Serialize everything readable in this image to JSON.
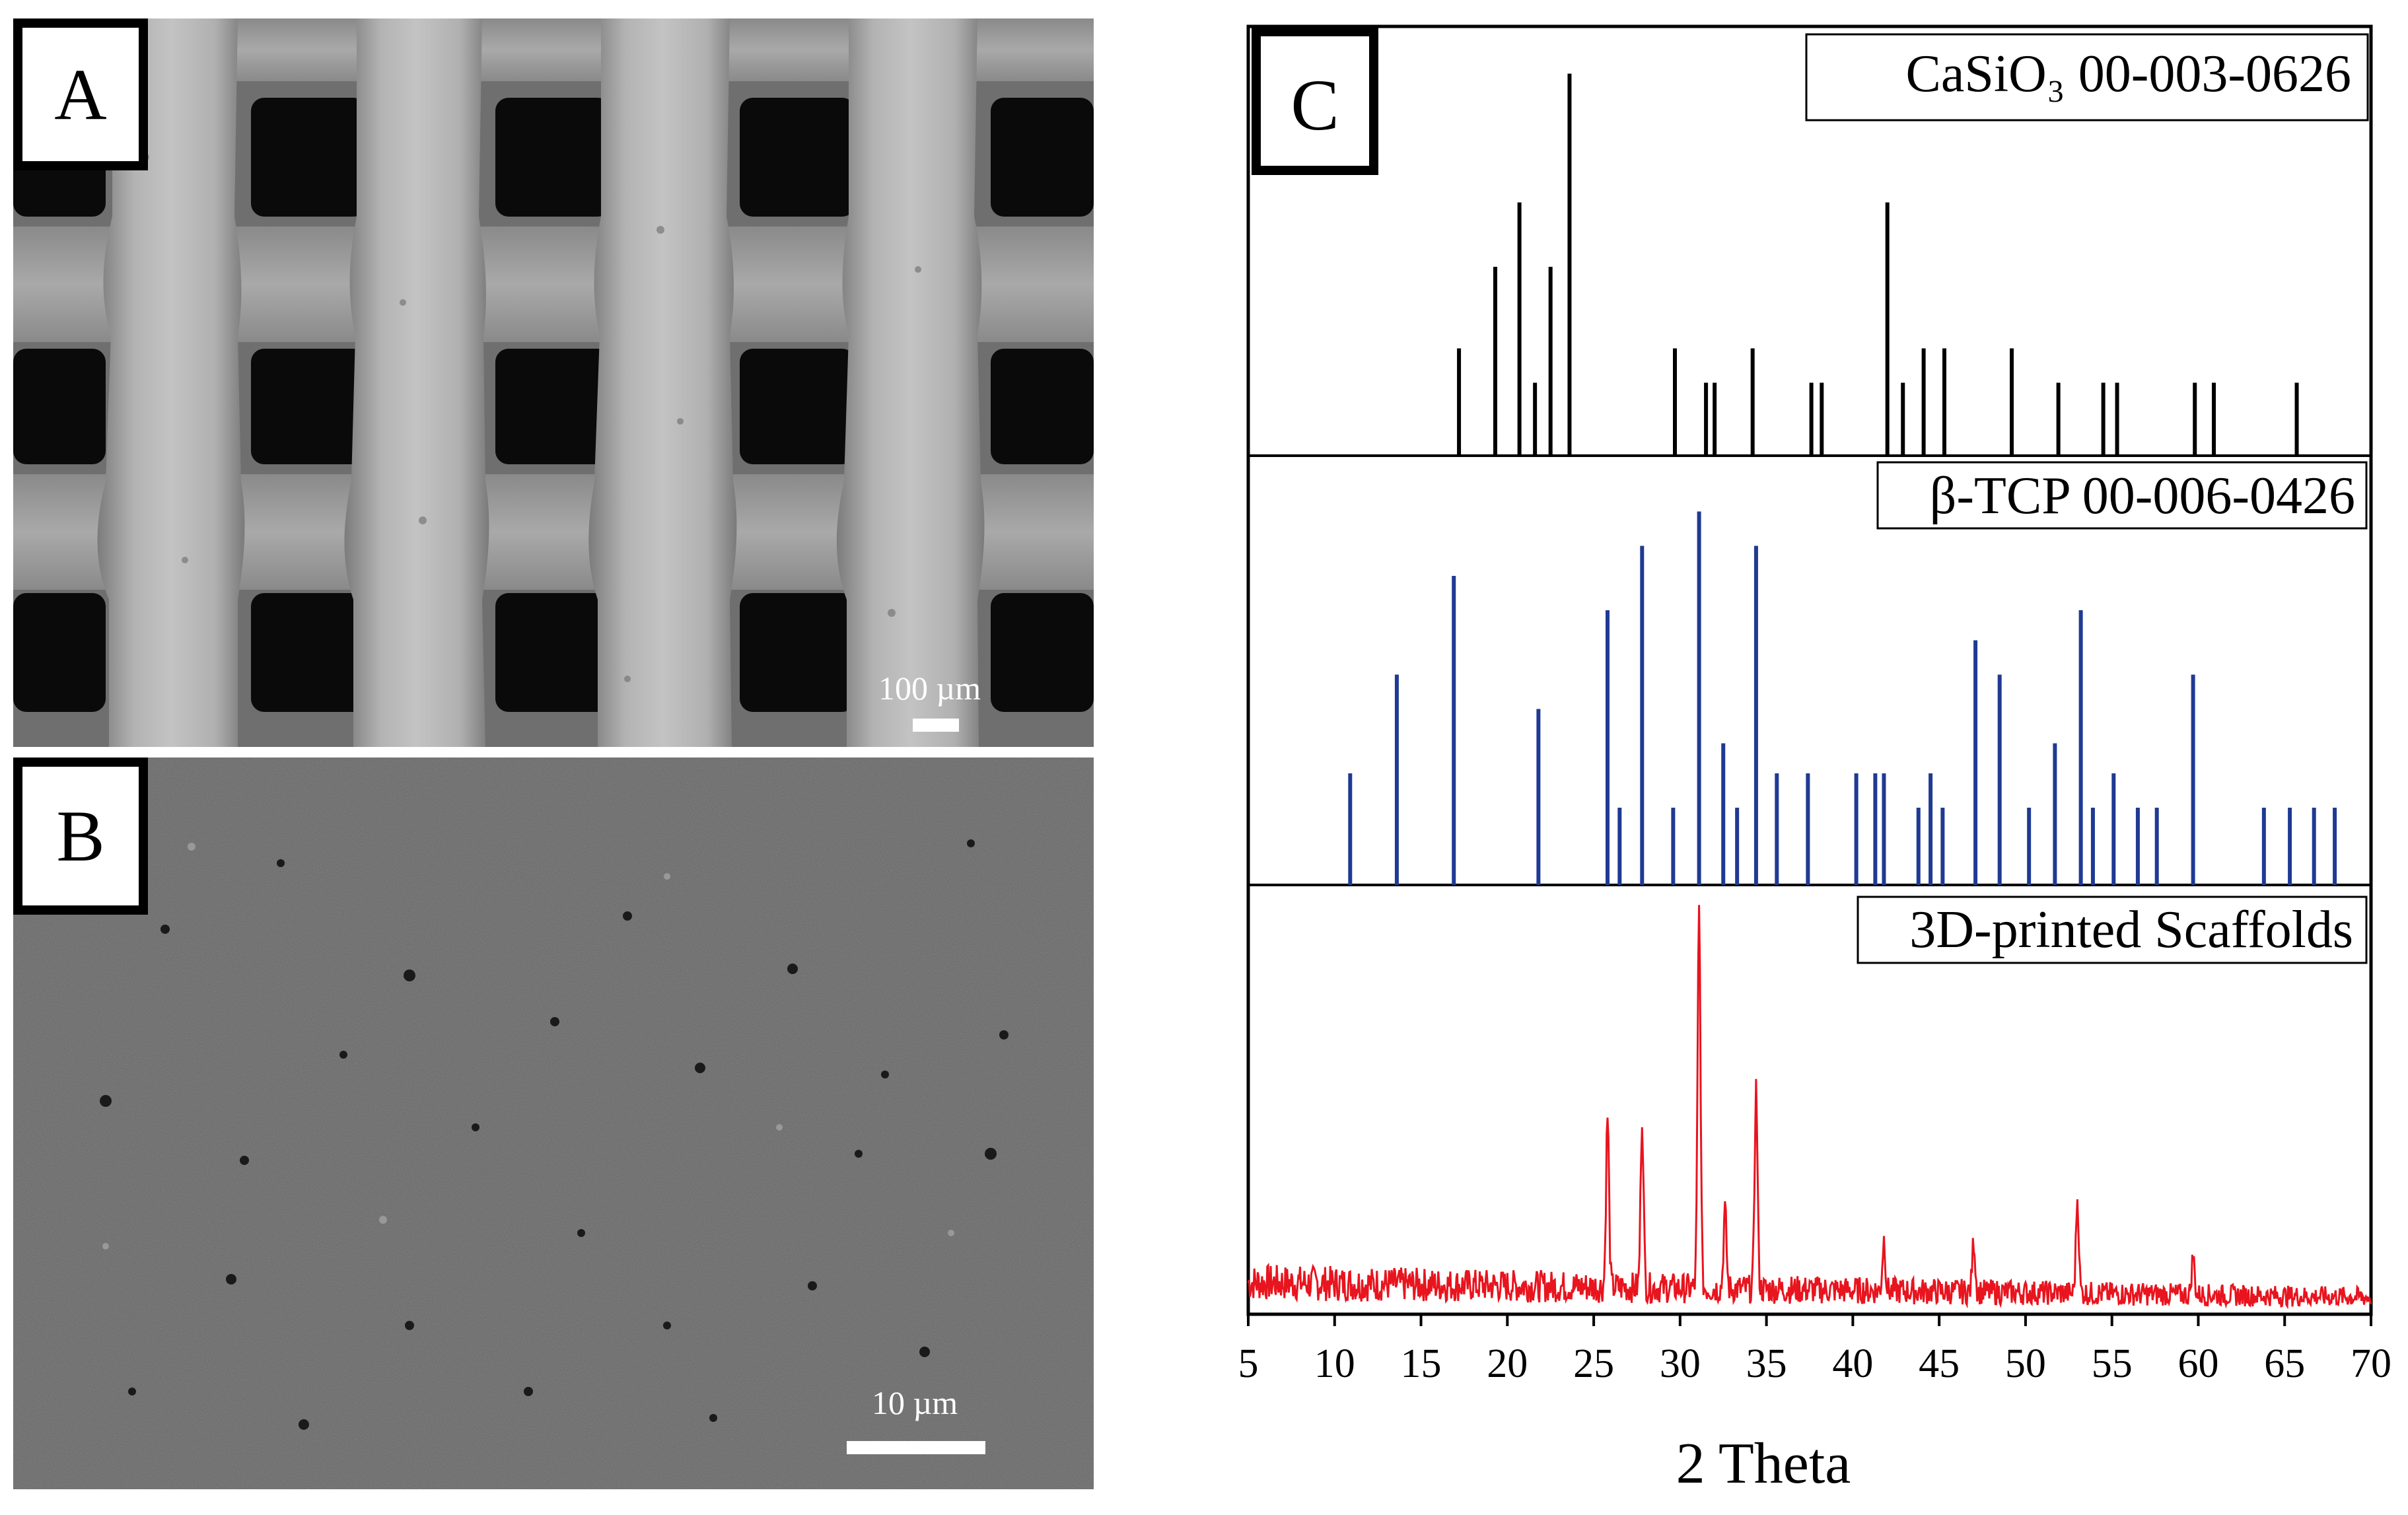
{
  "panels": {
    "a": {
      "letter": "A",
      "scale_label": "100 µm"
    },
    "b": {
      "letter": "B",
      "scale_label": "10 µm"
    },
    "c": {
      "letter": "C"
    }
  },
  "chart_data": {
    "type": "bar",
    "xlabel": "2 Theta",
    "xlim": [
      5,
      70
    ],
    "x_ticks": [
      5,
      10,
      15,
      20,
      25,
      30,
      35,
      40,
      45,
      50,
      55,
      60,
      65,
      70
    ],
    "series": [
      {
        "name": "CaSiO₃ 00-003-0626",
        "color": "#000000",
        "peaks": [
          {
            "x": 17.2,
            "y": 0.25
          },
          {
            "x": 19.3,
            "y": 0.44
          },
          {
            "x": 20.7,
            "y": 0.59
          },
          {
            "x": 21.6,
            "y": 0.17
          },
          {
            "x": 22.5,
            "y": 0.44
          },
          {
            "x": 23.6,
            "y": 0.89
          },
          {
            "x": 29.7,
            "y": 0.25
          },
          {
            "x": 31.5,
            "y": 0.17
          },
          {
            "x": 32.0,
            "y": 0.17
          },
          {
            "x": 34.2,
            "y": 0.25
          },
          {
            "x": 37.6,
            "y": 0.17
          },
          {
            "x": 38.2,
            "y": 0.17
          },
          {
            "x": 42.0,
            "y": 0.59
          },
          {
            "x": 42.9,
            "y": 0.17
          },
          {
            "x": 44.1,
            "y": 0.25
          },
          {
            "x": 45.3,
            "y": 0.25
          },
          {
            "x": 49.2,
            "y": 0.25
          },
          {
            "x": 51.9,
            "y": 0.17
          },
          {
            "x": 54.5,
            "y": 0.17
          },
          {
            "x": 55.3,
            "y": 0.17
          },
          {
            "x": 59.8,
            "y": 0.17
          },
          {
            "x": 60.9,
            "y": 0.17
          },
          {
            "x": 65.7,
            "y": 0.17
          }
        ]
      },
      {
        "name": "β-TCP 00-006-0426",
        "color": "#1f3a93",
        "peaks": [
          {
            "x": 10.9,
            "y": 0.26
          },
          {
            "x": 13.6,
            "y": 0.49
          },
          {
            "x": 16.9,
            "y": 0.72
          },
          {
            "x": 21.8,
            "y": 0.41
          },
          {
            "x": 25.8,
            "y": 0.64
          },
          {
            "x": 26.5,
            "y": 0.18
          },
          {
            "x": 27.8,
            "y": 0.79
          },
          {
            "x": 29.6,
            "y": 0.18
          },
          {
            "x": 31.1,
            "y": 0.87
          },
          {
            "x": 32.5,
            "y": 0.33
          },
          {
            "x": 33.3,
            "y": 0.18
          },
          {
            "x": 34.4,
            "y": 0.79
          },
          {
            "x": 35.6,
            "y": 0.26
          },
          {
            "x": 37.4,
            "y": 0.26
          },
          {
            "x": 40.2,
            "y": 0.26
          },
          {
            "x": 41.3,
            "y": 0.26
          },
          {
            "x": 41.8,
            "y": 0.26
          },
          {
            "x": 43.8,
            "y": 0.18
          },
          {
            "x": 44.5,
            "y": 0.26
          },
          {
            "x": 45.2,
            "y": 0.18
          },
          {
            "x": 47.1,
            "y": 0.57
          },
          {
            "x": 48.5,
            "y": 0.49
          },
          {
            "x": 50.2,
            "y": 0.18
          },
          {
            "x": 51.7,
            "y": 0.33
          },
          {
            "x": 53.2,
            "y": 0.64
          },
          {
            "x": 53.9,
            "y": 0.18
          },
          {
            "x": 55.1,
            "y": 0.26
          },
          {
            "x": 56.5,
            "y": 0.18
          },
          {
            "x": 57.6,
            "y": 0.18
          },
          {
            "x": 59.7,
            "y": 0.49
          },
          {
            "x": 63.8,
            "y": 0.18
          },
          {
            "x": 65.3,
            "y": 0.18
          },
          {
            "x": 66.7,
            "y": 0.18
          },
          {
            "x": 67.9,
            "y": 0.18
          }
        ]
      },
      {
        "name": "3D-printed Scaffolds",
        "color": "#e8141e",
        "type": "line",
        "peaks": [
          {
            "x": 25.8,
            "y": 0.4
          },
          {
            "x": 27.8,
            "y": 0.4
          },
          {
            "x": 31.1,
            "y": 0.88
          },
          {
            "x": 32.6,
            "y": 0.18
          },
          {
            "x": 34.4,
            "y": 0.47
          },
          {
            "x": 41.8,
            "y": 0.12
          },
          {
            "x": 47.0,
            "y": 0.12
          },
          {
            "x": 53.0,
            "y": 0.22
          },
          {
            "x": 59.7,
            "y": 0.09
          }
        ],
        "baseline": 0.06
      }
    ]
  }
}
